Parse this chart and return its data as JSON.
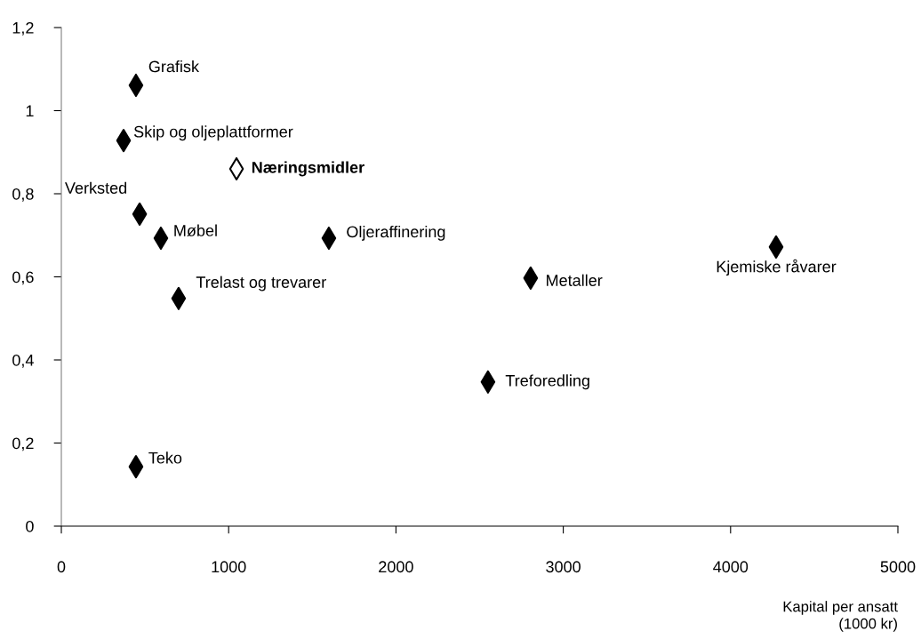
{
  "chart_data": {
    "type": "scatter",
    "xlabel": "Kapital per ansatt\n(1000 kr)",
    "xlim": [
      0,
      5000
    ],
    "xticks": [
      0,
      1000,
      2000,
      3000,
      4000,
      5000
    ],
    "ylim": [
      0,
      1.2
    ],
    "yticks": [
      {
        "value": 0,
        "label": "0"
      },
      {
        "value": 0.2,
        "label": "0,2"
      },
      {
        "value": 0.4,
        "label": "0,4"
      },
      {
        "value": 0.6,
        "label": "0,6"
      },
      {
        "value": 0.8,
        "label": "0,8"
      },
      {
        "value": 1,
        "label": "1"
      },
      {
        "value": 1.2,
        "label": "1,2"
      }
    ],
    "marker": "diamond",
    "grid": false,
    "legend": false,
    "series": [
      {
        "color": "#000000",
        "x": [
          446,
          372,
          468,
          595,
          1599,
          701,
          2805,
          4272,
          2550,
          446
        ],
        "values": [
          1.061,
          0.928,
          0.751,
          0.693,
          0.693,
          0.548,
          0.597,
          0.672,
          0.347,
          0.143
        ]
      },
      {
        "color": "#ffffff",
        "x": [
          1047
        ],
        "values": [
          0.86
        ]
      }
    ],
    "annotations": [
      {
        "text": "Grafisk",
        "x": 446,
        "y": 1.061
      },
      {
        "text": "Skip og oljeplattformer",
        "x": 372,
        "y": 0.928
      },
      {
        "text": "Verksted",
        "x": 468,
        "y": 0.751
      },
      {
        "text": "Møbel",
        "x": 595,
        "y": 0.693
      },
      {
        "text": "Oljeraffinering",
        "x": 1599,
        "y": 0.693
      },
      {
        "text": "Trelast og trevarer",
        "x": 701,
        "y": 0.548
      },
      {
        "text": "Metaller",
        "x": 2805,
        "y": 0.597
      },
      {
        "text": "Kjemiske råvarer",
        "x": 4272,
        "y": 0.672
      },
      {
        "text": "Treforedling",
        "x": 2550,
        "y": 0.347
      },
      {
        "text": "Teko",
        "x": 446,
        "y": 0.143
      },
      {
        "text": "Næringsmidler",
        "x": 1047,
        "y": 0.86
      }
    ]
  }
}
